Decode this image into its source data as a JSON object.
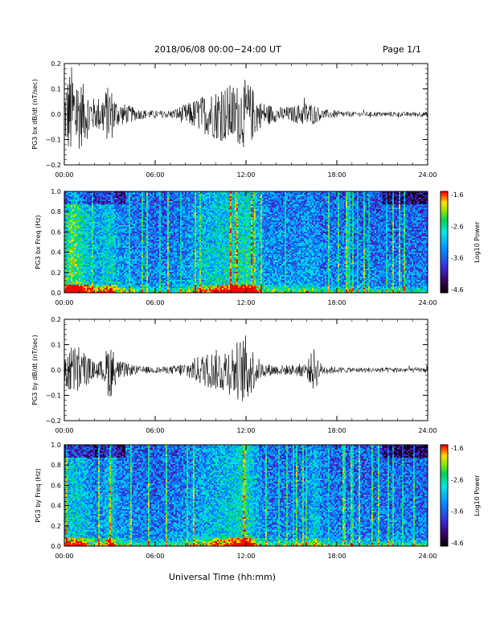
{
  "header": {
    "title": "2018/06/08  00:00−24:00 UT",
    "page": "Page 1/1"
  },
  "xlabel": "Universal Time (hh:mm)",
  "colors": {
    "waveform": "#000000",
    "frame": "#000000"
  },
  "chart_data": [
    {
      "type": "line",
      "ylabel": "PG3 bx dB/dt (nT/sec)",
      "xlim": [
        0,
        24
      ],
      "ylim": [
        -0.2,
        0.2
      ],
      "xticks": [
        "00:00",
        "06:00",
        "12:00",
        "18:00",
        "24:00"
      ],
      "yticks": [
        "0.2",
        "0.1",
        "0.0",
        "−0.1",
        "−0.2"
      ],
      "activity_hours": [
        0,
        0.5,
        1,
        1.5,
        2,
        2.5,
        3,
        3.5,
        4,
        4.5,
        5,
        6,
        7,
        8,
        9,
        10,
        11,
        11.5,
        12,
        12.5,
        13,
        14,
        15,
        16,
        16.5,
        17,
        18,
        19,
        20,
        21,
        22,
        23,
        24
      ],
      "activity_amp": [
        0.12,
        0.2,
        0.14,
        0.1,
        0.06,
        0.08,
        0.12,
        0.05,
        0.04,
        0.03,
        0.02,
        0.015,
        0.015,
        0.04,
        0.07,
        0.1,
        0.12,
        0.12,
        0.14,
        0.1,
        0.05,
        0.03,
        0.03,
        0.05,
        0.04,
        0.02,
        0.015,
        0.01,
        0.01,
        0.01,
        0.01,
        0.01,
        0.01
      ]
    },
    {
      "type": "heatmap",
      "ylabel": "PG3 bx Freq (Hz)",
      "xlim": [
        0,
        24
      ],
      "ylim": [
        0,
        1.0
      ],
      "xticks": [
        "00:00",
        "06:00",
        "12:00",
        "18:00",
        "24:00"
      ],
      "yticks": [
        "1.0",
        "0.8",
        "0.6",
        "0.4",
        "0.2",
        "0.0"
      ],
      "colorbar": {
        "label": "Log10 Power",
        "range": [
          -4.6,
          -1.6
        ],
        "ticks": [
          "-1.6",
          "-2.6",
          "-3.6",
          "-4.6"
        ]
      }
    },
    {
      "type": "line",
      "ylabel": "PG3 by dB/dt (nT/sec)",
      "xlim": [
        0,
        24
      ],
      "ylim": [
        -0.2,
        0.2
      ],
      "xticks": [
        "00:00",
        "06:00",
        "12:00",
        "18:00",
        "24:00"
      ],
      "yticks": [
        "0.2",
        "0.1",
        "0.0",
        "−0.1",
        "−0.2"
      ],
      "activity_hours": [
        0,
        0.5,
        1,
        1.5,
        2,
        2.5,
        3,
        3.5,
        4,
        4.5,
        5,
        6,
        7,
        8,
        9,
        10,
        11,
        11.5,
        12,
        12.5,
        13,
        14,
        15,
        16,
        16.5,
        17,
        18,
        19,
        20,
        21,
        22,
        23,
        24
      ],
      "activity_amp": [
        0.08,
        0.1,
        0.1,
        0.06,
        0.03,
        0.04,
        0.12,
        0.04,
        0.03,
        0.02,
        0.015,
        0.012,
        0.015,
        0.03,
        0.06,
        0.08,
        0.1,
        0.12,
        0.14,
        0.08,
        0.03,
        0.02,
        0.02,
        0.03,
        0.09,
        0.02,
        0.012,
        0.01,
        0.01,
        0.01,
        0.01,
        0.01,
        0.01
      ]
    },
    {
      "type": "heatmap",
      "ylabel": "PG3 by Freq (Hz)",
      "xlim": [
        0,
        24
      ],
      "ylim": [
        0,
        1.0
      ],
      "xticks": [
        "00:00",
        "06:00",
        "12:00",
        "18:00",
        "24:00"
      ],
      "yticks": [
        "1.0",
        "0.8",
        "0.6",
        "0.4",
        "0.2",
        "0.0"
      ],
      "colorbar": {
        "label": "Log10 Power",
        "range": [
          -4.6,
          -1.6
        ],
        "ticks": [
          "-1.6",
          "-2.6",
          "-3.6",
          "-4.6"
        ]
      }
    }
  ]
}
